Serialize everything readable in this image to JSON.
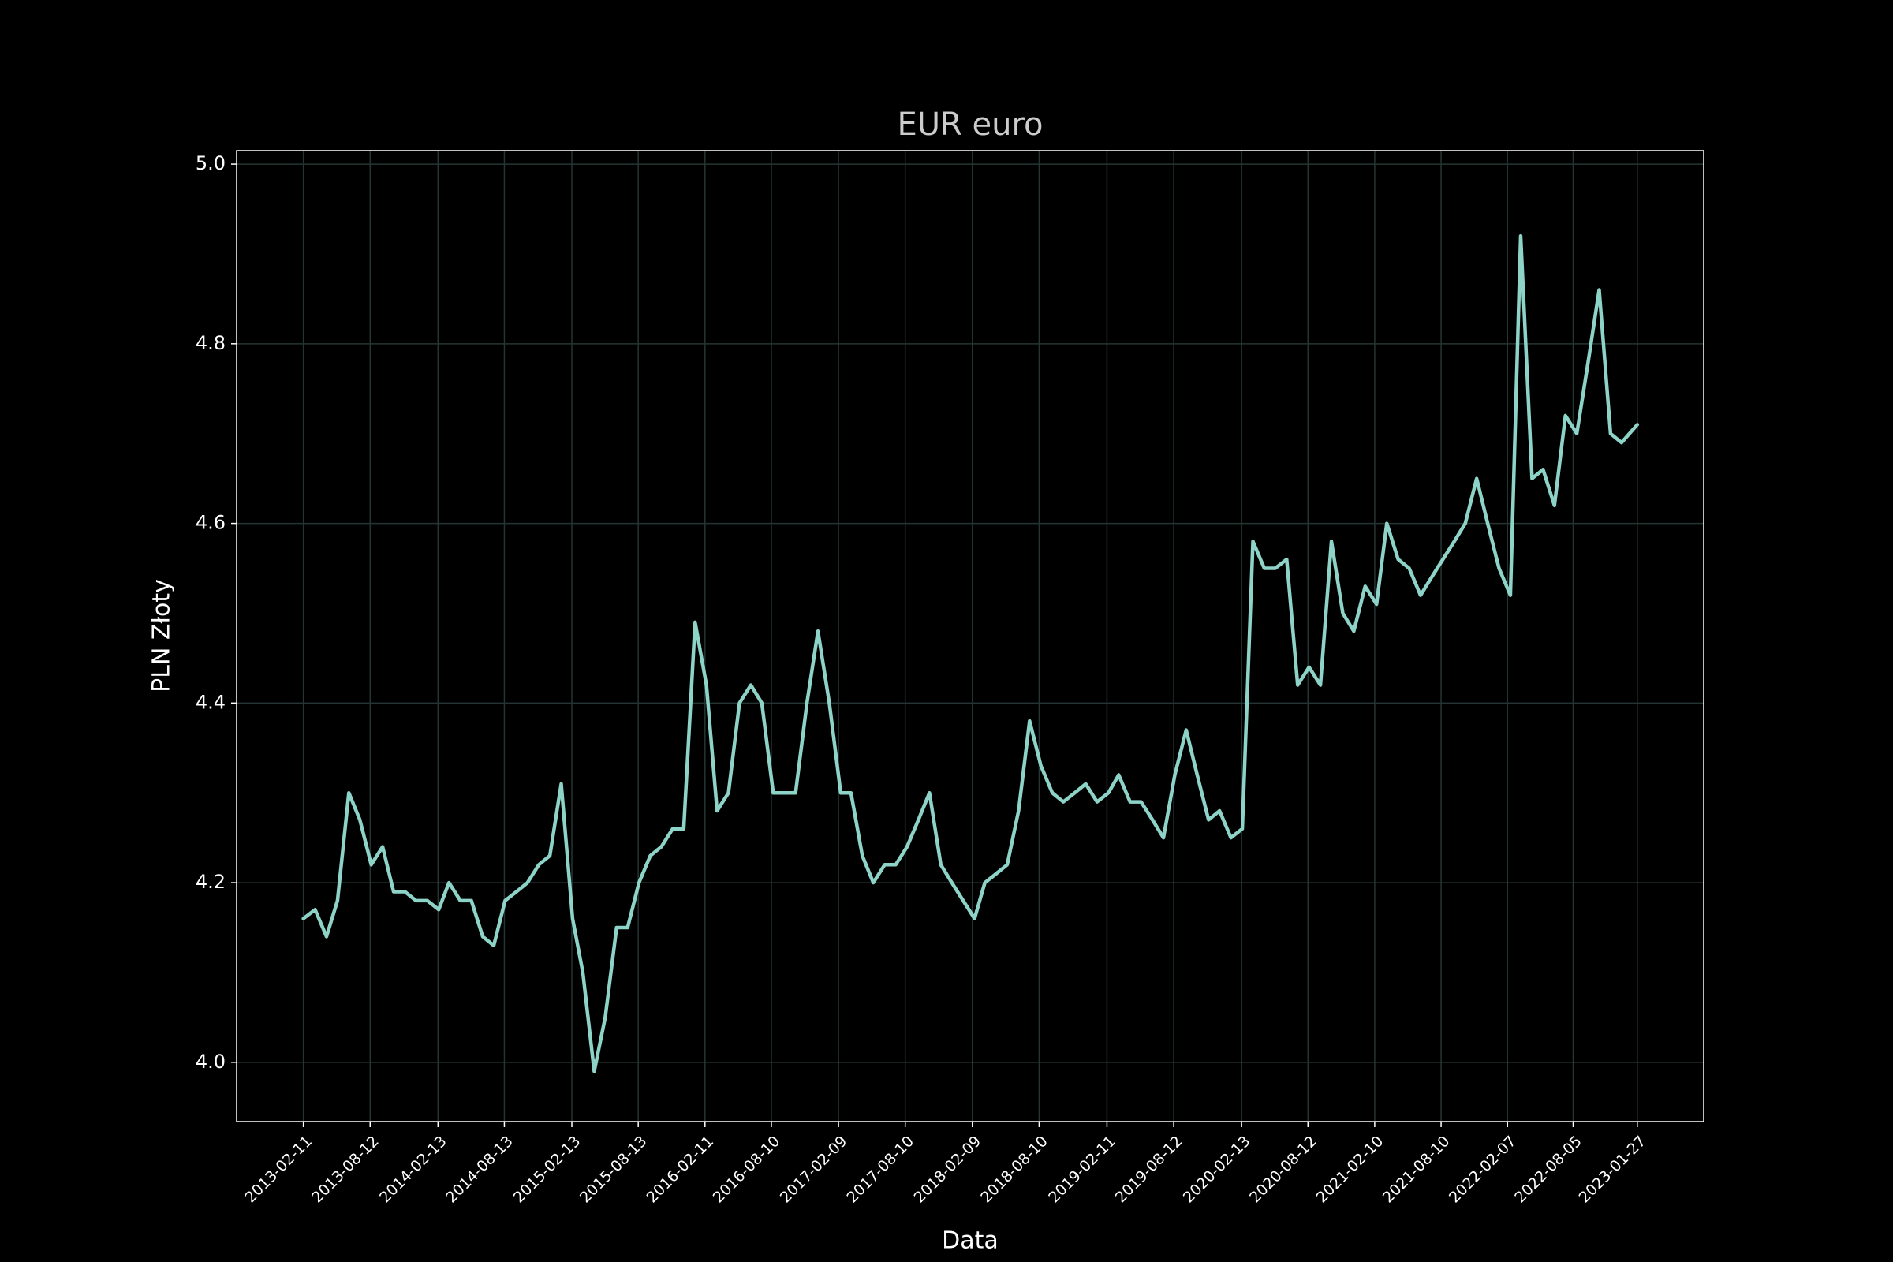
{
  "chart_data": {
    "type": "line",
    "title": "EUR euro",
    "x_label": "Data",
    "y_label": "PLN Złoty",
    "color": "#8dd3c7",
    "grid": true,
    "x": [
      "2013-02-11",
      "2013-03-15",
      "2013-04-15",
      "2013-05-15",
      "2013-06-15",
      "2013-07-15",
      "2013-08-15",
      "2013-09-15",
      "2013-10-15",
      "2013-11-15",
      "2013-12-15",
      "2014-01-15",
      "2014-02-15",
      "2014-03-15",
      "2014-04-15",
      "2014-05-15",
      "2014-06-15",
      "2014-07-15",
      "2014-08-15",
      "2014-09-15",
      "2014-10-15",
      "2014-11-15",
      "2014-12-15",
      "2015-01-15",
      "2015-02-15",
      "2015-03-15",
      "2015-04-15",
      "2015-05-15",
      "2015-06-15",
      "2015-07-15",
      "2015-08-15",
      "2015-09-15",
      "2015-10-15",
      "2015-11-15",
      "2015-12-15",
      "2016-01-15",
      "2016-02-15",
      "2016-03-15",
      "2016-04-15",
      "2016-05-15",
      "2016-06-15",
      "2016-07-15",
      "2016-08-15",
      "2016-09-15",
      "2016-10-15",
      "2016-11-15",
      "2016-12-15",
      "2017-01-15",
      "2017-02-15",
      "2017-03-15",
      "2017-04-15",
      "2017-05-15",
      "2017-06-15",
      "2017-07-15",
      "2017-08-15",
      "2017-09-15",
      "2017-10-15",
      "2017-11-15",
      "2017-12-15",
      "2018-01-15",
      "2018-02-15",
      "2018-03-15",
      "2018-04-15",
      "2018-05-15",
      "2018-06-15",
      "2018-07-15",
      "2018-08-15",
      "2018-09-15",
      "2018-10-15",
      "2018-11-15",
      "2018-12-15",
      "2019-01-15",
      "2019-02-15",
      "2019-03-15",
      "2019-04-15",
      "2019-05-15",
      "2019-06-15",
      "2019-07-15",
      "2019-08-15",
      "2019-09-15",
      "2019-10-15",
      "2019-11-15",
      "2019-12-15",
      "2020-01-15",
      "2020-02-15",
      "2020-03-15",
      "2020-04-15",
      "2020-05-15",
      "2020-06-15",
      "2020-07-15",
      "2020-08-15",
      "2020-09-15",
      "2020-10-15",
      "2020-11-15",
      "2020-12-15",
      "2021-01-15",
      "2021-02-15",
      "2021-03-15",
      "2021-04-15",
      "2021-05-15",
      "2021-06-15",
      "2021-07-15",
      "2021-08-15",
      "2021-09-15",
      "2021-10-15",
      "2021-11-15",
      "2021-12-15",
      "2022-01-15",
      "2022-02-15",
      "2022-03-15",
      "2022-04-15",
      "2022-05-15",
      "2022-06-15",
      "2022-07-15",
      "2022-08-15",
      "2022-09-15",
      "2022-10-15",
      "2022-11-15",
      "2022-12-15",
      "2023-01-27"
    ],
    "values": [
      4.16,
      4.17,
      4.14,
      4.18,
      4.3,
      4.27,
      4.22,
      4.24,
      4.19,
      4.19,
      4.18,
      4.18,
      4.17,
      4.2,
      4.18,
      4.18,
      4.14,
      4.13,
      4.18,
      4.19,
      4.2,
      4.22,
      4.23,
      4.31,
      4.16,
      4.1,
      3.99,
      4.05,
      4.15,
      4.15,
      4.2,
      4.23,
      4.24,
      4.26,
      4.26,
      4.49,
      4.42,
      4.28,
      4.3,
      4.4,
      4.42,
      4.4,
      4.3,
      4.3,
      4.3,
      4.4,
      4.48,
      4.4,
      4.3,
      4.3,
      4.23,
      4.2,
      4.22,
      4.22,
      4.24,
      4.27,
      4.3,
      4.22,
      4.2,
      4.18,
      4.16,
      4.2,
      4.21,
      4.22,
      4.28,
      4.38,
      4.33,
      4.3,
      4.29,
      4.3,
      4.31,
      4.29,
      4.3,
      4.32,
      4.29,
      4.29,
      4.27,
      4.25,
      4.32,
      4.37,
      4.32,
      4.27,
      4.28,
      4.25,
      4.26,
      4.58,
      4.55,
      4.55,
      4.56,
      4.42,
      4.44,
      4.42,
      4.58,
      4.5,
      4.48,
      4.53,
      4.51,
      4.6,
      4.56,
      4.55,
      4.52,
      4.54,
      4.56,
      4.58,
      4.6,
      4.65,
      4.6,
      4.55,
      4.52,
      4.92,
      4.65,
      4.66,
      4.62,
      4.72,
      4.7,
      4.78,
      4.86,
      4.7,
      4.69,
      4.71
    ],
    "xlim": [
      "2012-08-13",
      "2023-07-27"
    ],
    "xticks": [
      "2013-02-11",
      "2013-08-12",
      "2014-02-13",
      "2014-08-13",
      "2015-02-13",
      "2015-08-13",
      "2016-02-11",
      "2016-08-10",
      "2017-02-09",
      "2017-08-10",
      "2018-02-09",
      "2018-08-10",
      "2019-02-11",
      "2019-08-12",
      "2020-02-13",
      "2020-08-12",
      "2021-02-10",
      "2021-08-10",
      "2022-02-07",
      "2022-08-05",
      "2023-01-27"
    ],
    "ylim": [
      3.934,
      5.015
    ],
    "yticks": [
      {
        "value": 4,
        "label": "4.0"
      },
      4.2,
      4.4,
      4.6,
      4.8,
      {
        "value": 5,
        "label": "5.0"
      }
    ]
  }
}
